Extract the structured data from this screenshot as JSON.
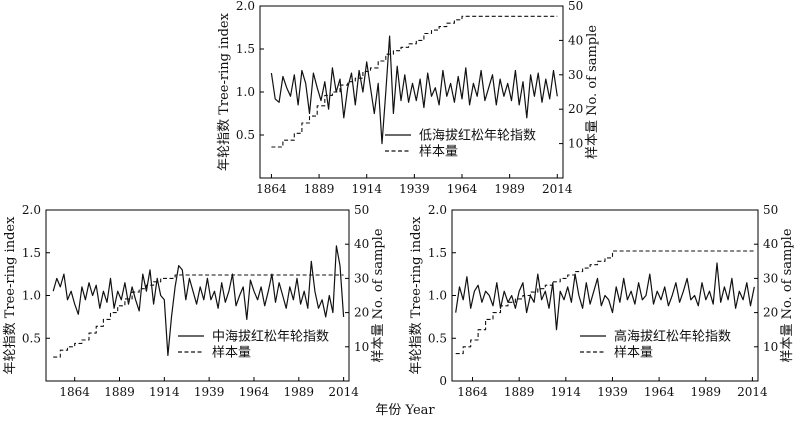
{
  "chart_data": [
    {
      "type": "line",
      "panel": "low",
      "ylabel": "年轮指数 Tree-ring index",
      "y2label": "样本量 No. of sample",
      "xlabel": "",
      "xlim": [
        1858,
        2017
      ],
      "ylim": [
        0,
        2.0
      ],
      "y2lim": [
        0,
        50
      ],
      "xticks": [
        1864,
        1889,
        1914,
        1939,
        1964,
        1989,
        2014
      ],
      "yticks": [
        0.5,
        1.0,
        1.5,
        2.0
      ],
      "ytick_labels": [
        "0.5",
        "1.0",
        "1.5",
        "2.0"
      ],
      "y2ticks": [
        10,
        20,
        30,
        40,
        50
      ],
      "legend_position": "lower-right",
      "series": [
        {
          "name": "低海拔红松年轮指数",
          "axis": "left",
          "style": "solid",
          "x": [
            1864,
            1866,
            1868,
            1870,
            1872,
            1874,
            1876,
            1878,
            1880,
            1882,
            1884,
            1886,
            1888,
            1890,
            1892,
            1894,
            1896,
            1898,
            1900,
            1902,
            1904,
            1906,
            1908,
            1910,
            1912,
            1914,
            1916,
            1918,
            1920,
            1922,
            1924,
            1926,
            1928,
            1930,
            1932,
            1934,
            1936,
            1938,
            1940,
            1942,
            1944,
            1946,
            1948,
            1950,
            1952,
            1954,
            1956,
            1958,
            1960,
            1962,
            1964,
            1966,
            1968,
            1970,
            1972,
            1974,
            1976,
            1978,
            1980,
            1982,
            1984,
            1986,
            1988,
            1990,
            1992,
            1994,
            1996,
            1998,
            2000,
            2002,
            2004,
            2006,
            2008,
            2010,
            2012,
            2014
          ],
          "y": [
            1.22,
            0.92,
            0.88,
            1.18,
            1.05,
            0.95,
            1.2,
            0.85,
            1.25,
            1.1,
            0.75,
            1.22,
            1.05,
            0.9,
            1.12,
            0.8,
            1.28,
            1.0,
            1.15,
            0.7,
            1.05,
            1.22,
            0.85,
            1.25,
            1.0,
            1.35,
            1.05,
            0.75,
            1.1,
            0.4,
            1.0,
            1.65,
            0.75,
            1.3,
            0.9,
            1.2,
            0.88,
            1.1,
            0.9,
            1.15,
            0.82,
            1.22,
            0.95,
            1.05,
            0.85,
            1.25,
            0.95,
            1.1,
            0.88,
            1.18,
            0.92,
            1.28,
            0.85,
            1.1,
            0.95,
            1.25,
            0.9,
            1.05,
            1.2,
            0.85,
            1.15,
            0.95,
            1.1,
            0.9,
            1.25,
            0.85,
            1.12,
            0.7,
            1.2,
            0.95,
            1.22,
            0.88,
            1.15,
            0.92,
            1.25,
            0.95
          ]
        },
        {
          "name": "样本量",
          "axis": "right",
          "style": "dashed",
          "x": [
            1864,
            1870,
            1876,
            1880,
            1884,
            1888,
            1892,
            1896,
            1900,
            1904,
            1908,
            1912,
            1916,
            1920,
            1924,
            1928,
            1932,
            1936,
            1940,
            1944,
            1948,
            1952,
            1956,
            1960,
            1964,
            2014
          ],
          "y": [
            9,
            11,
            13,
            16,
            18,
            21,
            24,
            25,
            27,
            28,
            29,
            31,
            32,
            34,
            36,
            37,
            38,
            39,
            40,
            42,
            43,
            44,
            45,
            46,
            47,
            47
          ]
        }
      ]
    },
    {
      "type": "line",
      "panel": "mid",
      "ylabel": "年轮指数 Tree-ring index",
      "y2label": "样本量 No. of sample",
      "xlabel": "",
      "xlim": [
        1848,
        2017
      ],
      "ylim": [
        0,
        2.0
      ],
      "y2lim": [
        0,
        50
      ],
      "xticks": [
        1864,
        1889,
        1914,
        1939,
        1964,
        1989,
        2014
      ],
      "yticks": [
        0.5,
        1.0,
        1.5,
        2.0
      ],
      "ytick_labels": [
        "0.5",
        "1.0",
        "1.5",
        "2.0"
      ],
      "y2ticks": [
        10,
        20,
        30,
        40,
        50
      ],
      "legend_position": "lower-right",
      "series": [
        {
          "name": "中海拔红松年轮指数",
          "axis": "left",
          "style": "solid",
          "x": [
            1852,
            1854,
            1856,
            1858,
            1860,
            1862,
            1864,
            1866,
            1868,
            1870,
            1872,
            1874,
            1876,
            1878,
            1880,
            1882,
            1884,
            1886,
            1888,
            1890,
            1892,
            1894,
            1896,
            1898,
            1900,
            1902,
            1904,
            1906,
            1908,
            1910,
            1912,
            1914,
            1916,
            1918,
            1920,
            1922,
            1924,
            1926,
            1928,
            1930,
            1932,
            1934,
            1936,
            1938,
            1940,
            1942,
            1944,
            1946,
            1948,
            1950,
            1952,
            1954,
            1956,
            1958,
            1960,
            1962,
            1964,
            1966,
            1968,
            1970,
            1972,
            1974,
            1976,
            1978,
            1980,
            1982,
            1984,
            1986,
            1988,
            1990,
            1992,
            1994,
            1996,
            1998,
            2000,
            2002,
            2004,
            2006,
            2008,
            2010,
            2012,
            2014
          ],
          "y": [
            1.05,
            1.2,
            1.1,
            1.25,
            0.95,
            1.05,
            0.9,
            0.78,
            1.1,
            0.95,
            1.15,
            1.0,
            1.12,
            0.85,
            1.05,
            0.92,
            1.2,
            0.85,
            1.05,
            0.95,
            1.15,
            0.9,
            1.1,
            0.95,
            0.82,
            1.25,
            1.05,
            1.3,
            0.9,
            1.2,
            1.0,
            0.95,
            0.3,
            0.75,
            1.1,
            1.35,
            1.3,
            0.95,
            1.2,
            1.05,
            0.9,
            1.1,
            0.95,
            1.2,
            0.95,
            1.05,
            0.85,
            1.15,
            0.92,
            1.05,
            1.25,
            0.88,
            1.0,
            1.1,
            0.72,
            1.18,
            1.05,
            0.95,
            1.1,
            0.88,
            1.05,
            1.25,
            0.92,
            1.15,
            1.0,
            0.85,
            1.1,
            0.95,
            1.2,
            0.9,
            1.05,
            0.85,
            1.4,
            1.05,
            0.85,
            0.95,
            0.75,
            1.0,
            0.8,
            1.58,
            1.35,
            0.75
          ]
        },
        {
          "name": "样本量",
          "axis": "right",
          "style": "dashed",
          "x": [
            1852,
            1856,
            1860,
            1864,
            1868,
            1872,
            1876,
            1880,
            1884,
            1888,
            1892,
            1896,
            1900,
            1904,
            1908,
            1912,
            1916,
            1920,
            1924,
            1928,
            2014
          ],
          "y": [
            7,
            9,
            10,
            11,
            12,
            14,
            16,
            18,
            20,
            22,
            24,
            26,
            27,
            28,
            29,
            30,
            30,
            31,
            31,
            31,
            31
          ]
        }
      ]
    },
    {
      "type": "line",
      "panel": "high",
      "ylabel": "年轮指数 Tree-ring index",
      "y2label": "样本量 No. of sample",
      "xlabel": "",
      "xlim": [
        1853,
        2017
      ],
      "ylim": [
        0,
        2.0
      ],
      "y2lim": [
        0,
        50
      ],
      "xticks": [
        1864,
        1889,
        1914,
        1939,
        1964,
        1989,
        2014
      ],
      "yticks": [
        0,
        0.5,
        1.0,
        1.5,
        2.0
      ],
      "ytick_labels": [
        "0",
        "0.5",
        "1.0",
        "1.5",
        "2.0"
      ],
      "y2ticks": [
        10,
        20,
        30,
        40,
        50
      ],
      "legend_position": "lower-right",
      "series": [
        {
          "name": "高海拔红松年轮指数",
          "axis": "left",
          "style": "solid",
          "x": [
            1855,
            1857,
            1859,
            1861,
            1863,
            1865,
            1867,
            1869,
            1871,
            1873,
            1875,
            1877,
            1879,
            1881,
            1883,
            1885,
            1887,
            1889,
            1891,
            1893,
            1895,
            1897,
            1899,
            1901,
            1903,
            1905,
            1907,
            1909,
            1911,
            1913,
            1915,
            1917,
            1919,
            1921,
            1923,
            1925,
            1927,
            1929,
            1931,
            1933,
            1935,
            1937,
            1939,
            1941,
            1943,
            1945,
            1947,
            1949,
            1951,
            1953,
            1955,
            1957,
            1959,
            1961,
            1963,
            1965,
            1967,
            1969,
            1971,
            1973,
            1975,
            1977,
            1979,
            1981,
            1983,
            1985,
            1987,
            1989,
            1991,
            1993,
            1995,
            1997,
            1999,
            2001,
            2003,
            2005,
            2007,
            2009,
            2011,
            2013,
            2015
          ],
          "y": [
            0.8,
            1.1,
            0.95,
            1.22,
            0.85,
            1.05,
            1.12,
            0.92,
            1.05,
            1.0,
            0.88,
            1.15,
            0.85,
            1.05,
            0.92,
            1.0,
            0.85,
            1.05,
            1.15,
            0.8,
            1.0,
            0.92,
            1.25,
            0.95,
            1.05,
            0.85,
            1.15,
            0.6,
            1.05,
            0.95,
            1.1,
            0.92,
            1.25,
            1.0,
            0.85,
            1.15,
            0.9,
            1.05,
            1.2,
            0.88,
            1.0,
            0.95,
            0.8,
            1.1,
            0.92,
            1.2,
            0.95,
            1.05,
            0.9,
            1.15,
            0.95,
            1.0,
            1.25,
            0.9,
            1.05,
            0.95,
            1.1,
            0.88,
            1.0,
            1.15,
            0.92,
            1.05,
            1.2,
            0.95,
            1.0,
            0.88,
            1.15,
            0.95,
            1.05,
            0.9,
            1.38,
            0.92,
            1.1,
            0.95,
            1.2,
            0.85,
            1.05,
            0.95,
            1.15,
            0.88,
            1.1
          ]
        },
        {
          "name": "样本量",
          "axis": "right",
          "style": "dashed",
          "x": [
            1855,
            1859,
            1863,
            1867,
            1871,
            1875,
            1879,
            1883,
            1887,
            1891,
            1895,
            1899,
            1903,
            1907,
            1911,
            1915,
            1919,
            1923,
            1927,
            1931,
            1935,
            1939,
            2015
          ],
          "y": [
            8,
            10,
            12,
            15,
            18,
            20,
            22,
            23,
            24,
            25,
            26,
            27,
            28,
            29,
            30,
            31,
            32,
            33,
            34,
            35,
            36,
            38,
            38
          ]
        }
      ]
    }
  ],
  "figure": {
    "xlabel": "年份 Year"
  }
}
